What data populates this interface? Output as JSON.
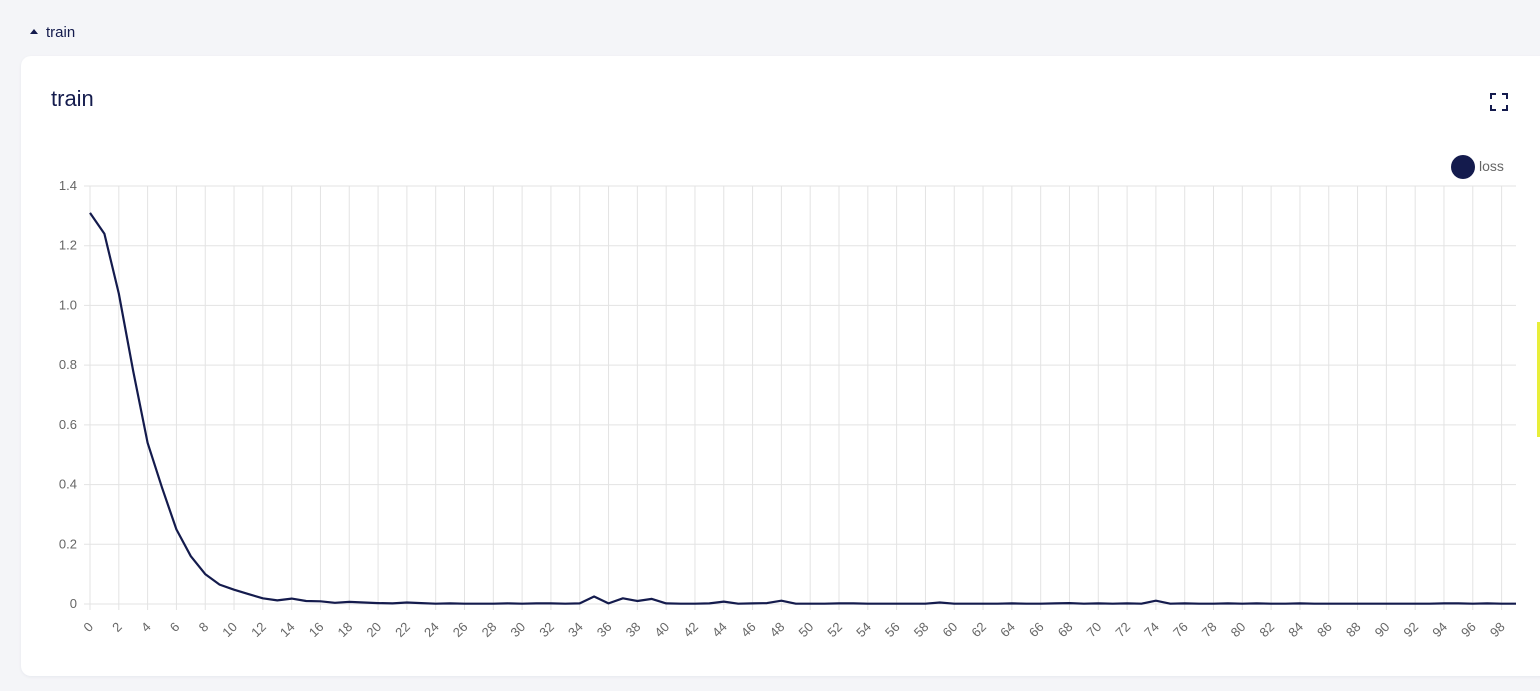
{
  "section": {
    "title": "train"
  },
  "panel": {
    "title": "train"
  },
  "icons": {
    "collapse": "caret-up-icon",
    "expand": "fullscreen-icon"
  },
  "colors": {
    "series": "#141b4d",
    "grid": "#e3e3e3",
    "tick_text": "#666666"
  },
  "chart_data": {
    "type": "line",
    "title": "train",
    "xlabel": "",
    "ylabel": "",
    "ylim": [
      0,
      1.4
    ],
    "yticks": [
      "0",
      "0.2",
      "0.4",
      "0.6",
      "0.8",
      "1.0",
      "1.2",
      "1.4"
    ],
    "xlim": [
      0,
      99
    ],
    "legend_position": "top-right",
    "grid": true,
    "series": [
      {
        "name": "loss",
        "color": "#141b4d",
        "x": [
          0,
          1,
          2,
          3,
          4,
          5,
          6,
          7,
          8,
          9,
          10,
          11,
          12,
          13,
          14,
          15,
          16,
          17,
          18,
          19,
          20,
          21,
          22,
          23,
          24,
          25,
          26,
          27,
          28,
          29,
          30,
          31,
          32,
          33,
          34,
          35,
          36,
          37,
          38,
          39,
          40,
          41,
          42,
          43,
          44,
          45,
          46,
          47,
          48,
          49,
          50,
          51,
          52,
          53,
          54,
          55,
          56,
          57,
          58,
          59,
          60,
          61,
          62,
          63,
          64,
          65,
          66,
          67,
          68,
          69,
          70,
          71,
          72,
          73,
          74,
          75,
          76,
          77,
          78,
          79,
          80,
          81,
          82,
          83,
          84,
          85,
          86,
          87,
          88,
          89,
          90,
          91,
          92,
          93,
          94,
          95,
          96,
          97,
          98,
          99
        ],
        "values": [
          1.31,
          1.24,
          1.04,
          0.78,
          0.54,
          0.39,
          0.25,
          0.16,
          0.1,
          0.065,
          0.048,
          0.033,
          0.019,
          0.012,
          0.018,
          0.01,
          0.009,
          0.004,
          0.007,
          0.005,
          0.003,
          0.002,
          0.005,
          0.003,
          0.001,
          0.002,
          0.001,
          0.001,
          0.001,
          0.002,
          0.001,
          0.002,
          0.002,
          0.001,
          0.002,
          0.025,
          0.002,
          0.019,
          0.01,
          0.017,
          0.002,
          0.001,
          0.001,
          0.002,
          0.008,
          0.001,
          0.002,
          0.003,
          0.011,
          0.001,
          0.001,
          0.001,
          0.002,
          0.002,
          0.001,
          0.001,
          0.001,
          0.001,
          0.001,
          0.005,
          0.001,
          0.001,
          0.001,
          0.001,
          0.002,
          0.001,
          0.001,
          0.002,
          0.003,
          0.001,
          0.002,
          0.001,
          0.002,
          0.001,
          0.011,
          0.001,
          0.002,
          0.001,
          0.001,
          0.002,
          0.001,
          0.002,
          0.001,
          0.001,
          0.002,
          0.001,
          0.001,
          0.001,
          0.001,
          0.001,
          0.001,
          0.001,
          0.001,
          0.001,
          0.002,
          0.002,
          0.001,
          0.002,
          0.001,
          0.001
        ]
      }
    ]
  }
}
